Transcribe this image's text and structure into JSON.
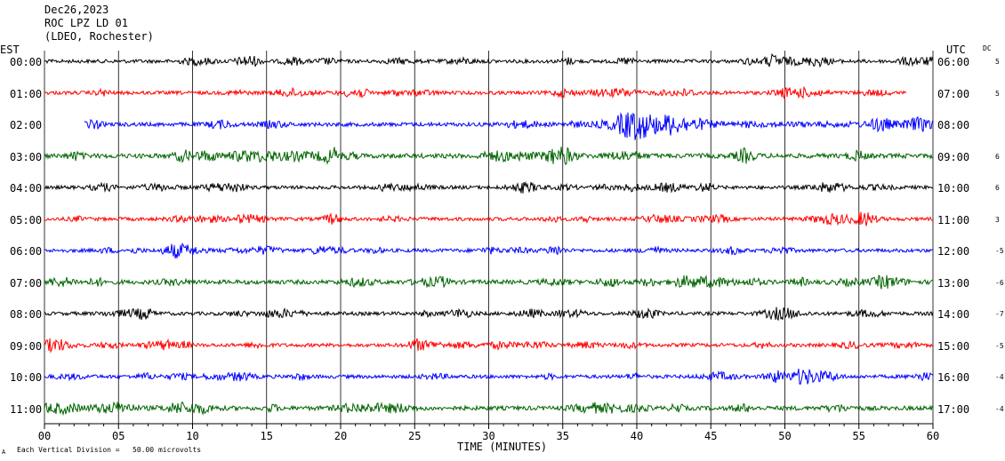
{
  "header": {
    "date": "Dec26,2023",
    "station": "ROC LPZ LD 01",
    "network": "(LDEO, Rochester)"
  },
  "left_axis_title": "EST",
  "right_axis_title": "UTC",
  "dc_title": "DC",
  "footer": {
    "scale_note": "Each Vertical Division =   50.00 microvolts",
    "corner_mark": "A"
  },
  "colors": {
    "cycle": [
      "#000000",
      "#ff0000",
      "#0000ff",
      "#006400"
    ]
  },
  "chart_data": {
    "type": "line",
    "title": "",
    "xlabel": "TIME (MINUTES)",
    "xlim": [
      0,
      60
    ],
    "x_ticks": [
      "00",
      "05",
      "10",
      "15",
      "20",
      "25",
      "30",
      "35",
      "40",
      "45",
      "50",
      "55",
      "60"
    ],
    "grid": "vertical lines every 5 minutes",
    "series": [
      {
        "est": "00:00",
        "utc": "06:00",
        "dc": "5",
        "start_min": 0,
        "end_min": 60,
        "amplitude": 1.0
      },
      {
        "est": "01:00",
        "utc": "07:00",
        "dc": "5",
        "start_min": 0,
        "end_min": 58.2,
        "amplitude": 1.0
      },
      {
        "est": "02:00",
        "utc": "08:00",
        "dc": "",
        "start_min": 2.7,
        "end_min": 60,
        "amplitude": 1.1,
        "event": {
          "onset_min": 37.5,
          "peak_min": 40.3,
          "end_min": 48,
          "peak_amplitude": 4.5
        }
      },
      {
        "est": "03:00",
        "utc": "09:00",
        "dc": "6",
        "start_min": 0,
        "end_min": 60,
        "amplitude": 1.3
      },
      {
        "est": "04:00",
        "utc": "10:00",
        "dc": "6",
        "start_min": 0,
        "end_min": 60,
        "amplitude": 1.0
      },
      {
        "est": "05:00",
        "utc": "11:00",
        "dc": "3",
        "start_min": 0,
        "end_min": 60,
        "amplitude": 1.0
      },
      {
        "est": "06:00",
        "utc": "12:00",
        "dc": "-5",
        "start_min": 0,
        "end_min": 60,
        "amplitude": 1.0
      },
      {
        "est": "07:00",
        "utc": "13:00",
        "dc": "-6",
        "start_min": 0,
        "end_min": 60,
        "amplitude": 1.2
      },
      {
        "est": "08:00",
        "utc": "14:00",
        "dc": "-7",
        "start_min": 0,
        "end_min": 60,
        "amplitude": 1.0
      },
      {
        "est": "09:00",
        "utc": "15:00",
        "dc": "-5",
        "start_min": 0,
        "end_min": 60,
        "amplitude": 1.0
      },
      {
        "est": "10:00",
        "utc": "16:00",
        "dc": "-4",
        "start_min": 0,
        "end_min": 60,
        "amplitude": 1.0
      },
      {
        "est": "11:00",
        "utc": "17:00",
        "dc": "-4",
        "start_min": 0,
        "end_min": 60,
        "amplitude": 1.2
      }
    ]
  }
}
